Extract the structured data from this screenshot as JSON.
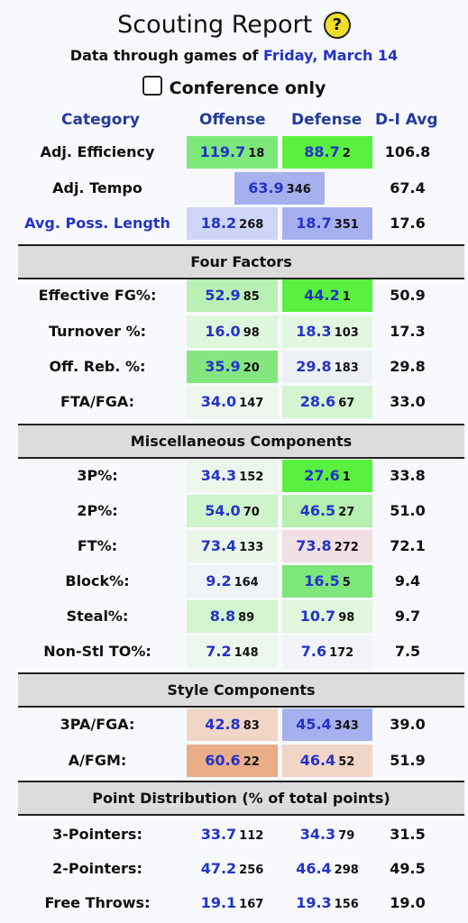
{
  "header": {
    "title": "Scouting Report",
    "help_glyph": "?",
    "subtitle_prefix": "Data through games of ",
    "subtitle_date": "Friday, March 14",
    "conference_only_label": "Conference only"
  },
  "columns": {
    "category": "Category",
    "offense": "Offense",
    "defense": "Defense",
    "avg": "D-I Avg"
  },
  "top_rows": [
    {
      "label": "Adj. Efficiency",
      "off": "119.7",
      "off_rank": "18",
      "def": "88.7",
      "def_rank": "2",
      "avg": "106.8"
    },
    {
      "label": "Adj. Tempo",
      "combined": "63.9",
      "combined_rank": "346",
      "avg": "67.4"
    },
    {
      "label": "Avg. Poss. Length",
      "off": "18.2",
      "off_rank": "268",
      "def": "18.7",
      "def_rank": "351",
      "avg": "17.6"
    }
  ],
  "sections": {
    "four_factors": "Four Factors",
    "misc": "Miscellaneous Components",
    "style": "Style Components",
    "point_dist": "Point Distribution (% of total points)"
  },
  "four_factors": [
    {
      "label": "Effective FG%:",
      "off": "52.9",
      "off_rank": "85",
      "def": "44.2",
      "def_rank": "1",
      "avg": "50.9"
    },
    {
      "label": "Turnover %:",
      "off": "16.0",
      "off_rank": "98",
      "def": "18.3",
      "def_rank": "103",
      "avg": "17.3"
    },
    {
      "label": "Off. Reb. %:",
      "off": "35.9",
      "off_rank": "20",
      "def": "29.8",
      "def_rank": "183",
      "avg": "29.8"
    },
    {
      "label": "FTA/FGA:",
      "off": "34.0",
      "off_rank": "147",
      "def": "28.6",
      "def_rank": "67",
      "avg": "33.0"
    }
  ],
  "misc": [
    {
      "label": "3P%:",
      "off": "34.3",
      "off_rank": "152",
      "def": "27.6",
      "def_rank": "1",
      "avg": "33.8"
    },
    {
      "label": "2P%:",
      "off": "54.0",
      "off_rank": "70",
      "def": "46.5",
      "def_rank": "27",
      "avg": "51.0"
    },
    {
      "label": "FT%:",
      "off": "73.4",
      "off_rank": "133",
      "def": "73.8",
      "def_rank": "272",
      "avg": "72.1"
    },
    {
      "label": "Block%:",
      "off": "9.2",
      "off_rank": "164",
      "def": "16.5",
      "def_rank": "5",
      "avg": "9.4"
    },
    {
      "label": "Steal%:",
      "off": "8.8",
      "off_rank": "89",
      "def": "10.7",
      "def_rank": "98",
      "avg": "9.7"
    },
    {
      "label": "Non-Stl TO%:",
      "off": "7.2",
      "off_rank": "148",
      "def": "7.6",
      "def_rank": "172",
      "avg": "7.5"
    }
  ],
  "style": [
    {
      "label": "3PA/FGA:",
      "off": "42.8",
      "off_rank": "83",
      "def": "45.4",
      "def_rank": "343",
      "avg": "39.0"
    },
    {
      "label": "A/FGM:",
      "off": "60.6",
      "off_rank": "22",
      "def": "46.4",
      "def_rank": "52",
      "avg": "51.9"
    }
  ],
  "point_dist": [
    {
      "label": "3-Pointers:",
      "off": "33.7",
      "off_rank": "112",
      "def": "34.3",
      "def_rank": "79",
      "avg": "31.5"
    },
    {
      "label": "2-Pointers:",
      "off": "47.2",
      "off_rank": "256",
      "def": "46.4",
      "def_rank": "298",
      "avg": "49.5"
    },
    {
      "label": "Free Throws:",
      "off": "19.1",
      "off_rank": "167",
      "def": "19.3",
      "def_rank": "156",
      "avg": "19.0"
    }
  ],
  "colors": {
    "strong_green": "#7ee77b",
    "bright_green": "#5af03f",
    "light_green": "#b9f0b3",
    "pale_green": "#def6dc",
    "very_pale_green": "#eefaed",
    "neutral": "#f2f4f7",
    "periwinkle": "#a7b0ef",
    "light_periwinkle": "#cfd5f8",
    "pale_rose": "#f2dfe3",
    "peach": "#f1d5c7",
    "salmon": "#e9ad87"
  }
}
